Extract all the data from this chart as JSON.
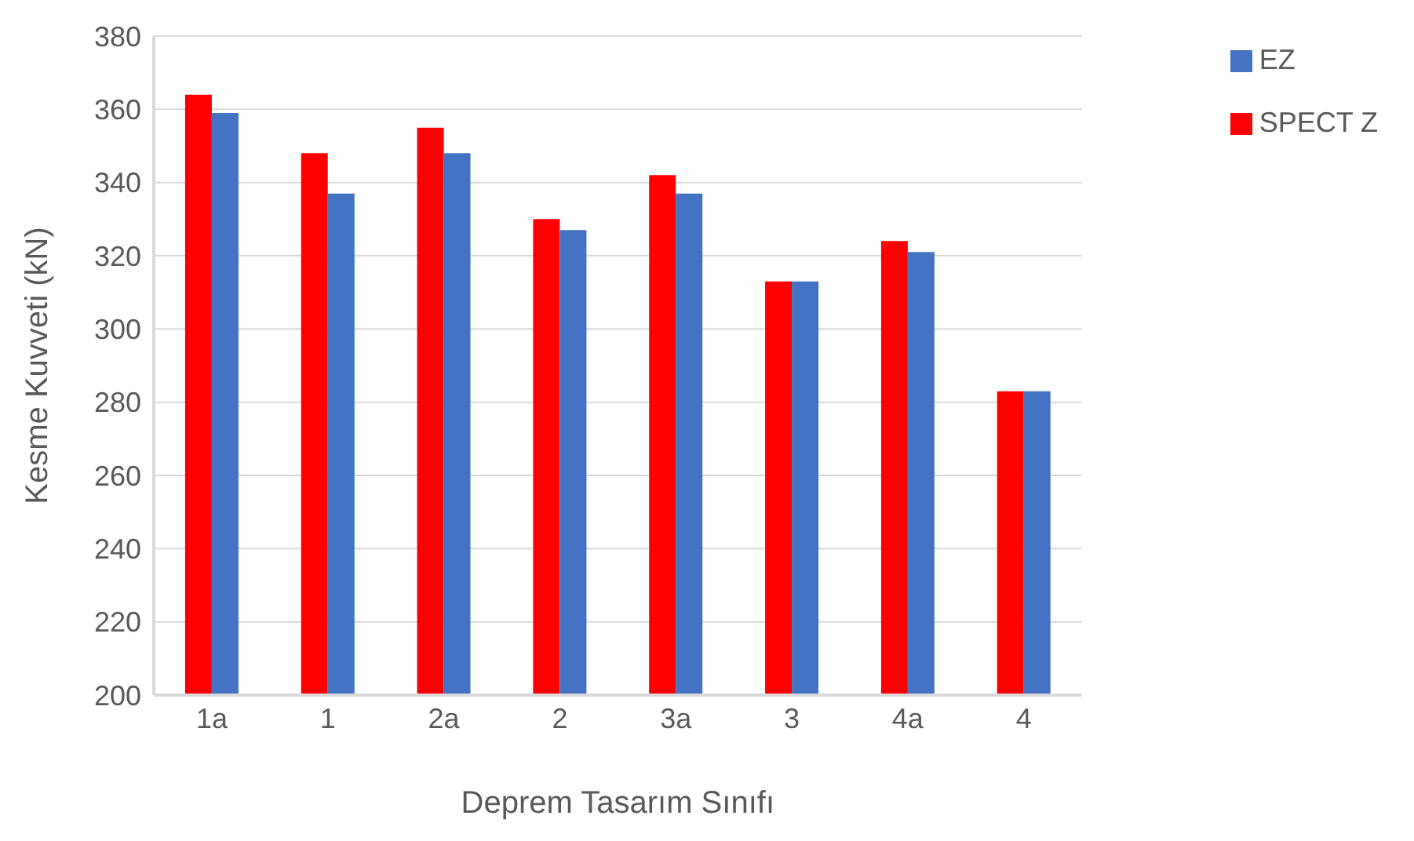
{
  "chart_data": {
    "type": "bar",
    "xlabel": "Deprem Tasarım Sınıfı",
    "ylabel": "Kesme Kuvveti (kN)",
    "categories": [
      "1a",
      "1",
      "2a",
      "2",
      "3a",
      "3",
      "4a",
      "4"
    ],
    "series": [
      {
        "name": "SPECT Z",
        "color": "#ff0000",
        "values": [
          364,
          348,
          355,
          330,
          342,
          313,
          324,
          283
        ]
      },
      {
        "name": "EZ",
        "color": "#4472c4",
        "values": [
          359,
          337,
          348,
          327,
          337,
          313,
          321,
          283
        ]
      }
    ],
    "ylim": [
      200,
      380
    ],
    "yticks": [
      200,
      220,
      240,
      260,
      280,
      300,
      320,
      340,
      360,
      380
    ],
    "grid": "y",
    "legend": "top right"
  }
}
